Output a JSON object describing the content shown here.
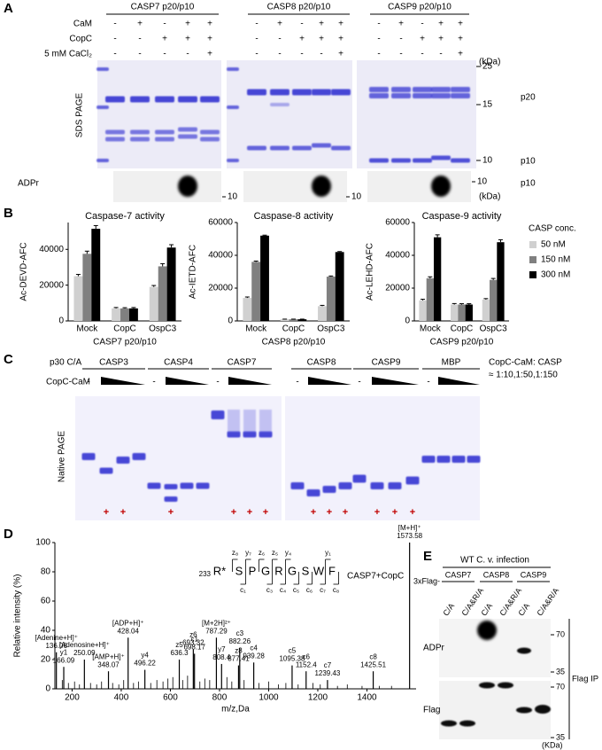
{
  "panel_a": {
    "label": "A",
    "headers": [
      "CASP7 p20/p10",
      "CASP8 p20/p10",
      "CASP9 p20/p10"
    ],
    "rows": [
      {
        "name": "CaM",
        "signs": [
          [
            "-",
            "+",
            "-",
            "+",
            "+"
          ],
          [
            "-",
            "+",
            "-",
            "+",
            "+"
          ],
          [
            "-",
            "+",
            "-",
            "+",
            "+"
          ]
        ]
      },
      {
        "name": "CopC",
        "signs": [
          [
            "-",
            "-",
            "+",
            "+",
            "+"
          ],
          [
            "-",
            "-",
            "+",
            "+",
            "+"
          ],
          [
            "-",
            "-",
            "+",
            "+",
            "+"
          ]
        ]
      },
      {
        "name": "5 mM CaCl₂",
        "signs": [
          [
            "-",
            "-",
            "-",
            "-",
            "+"
          ],
          [
            "-",
            "-",
            "-",
            "-",
            "+"
          ],
          [
            "-",
            "-",
            "-",
            "-",
            "+"
          ]
        ]
      }
    ],
    "kda": "(kDa)",
    "markers": [
      "25",
      "15",
      "10"
    ],
    "bands": [
      "p20",
      "p10"
    ],
    "gel_label": "SDS PAGE",
    "blot_label": "ADPr",
    "blot_markers": [
      "10",
      "10",
      "10"
    ],
    "blot_band": "p10",
    "blot_kda": "(kDa)"
  },
  "panel_b": {
    "label": "B",
    "legend": {
      "title": "CASP conc.",
      "entries": [
        {
          "name": "50 nM",
          "color": "#d0d0d0"
        },
        {
          "name": "150 nM",
          "color": "#808080"
        },
        {
          "name": "300 nM",
          "color": "#000000"
        }
      ]
    },
    "charts": [
      {
        "type": "bar",
        "title": "Caspase-7 activity",
        "ylabel": "Ac-DEVD-AFC",
        "categories": [
          "Mock",
          "CopC",
          "OspC3"
        ],
        "group_label": "CASP7 p20/p10",
        "ylim": [
          0,
          55000
        ],
        "yticks": [
          0,
          20000,
          40000
        ],
        "series": [
          {
            "values": [
              25000,
              7000,
              19000
            ],
            "errors": [
              1000,
              500,
              800
            ]
          },
          {
            "values": [
              37500,
              7000,
              30500
            ],
            "errors": [
              1500,
              400,
              1500
            ]
          },
          {
            "values": [
              51500,
              7000,
              41000
            ],
            "errors": [
              1800,
              500,
              1600
            ]
          }
        ]
      },
      {
        "type": "bar",
        "title": "Caspase-8 activity",
        "ylabel": "Ac-IETD-AFC",
        "categories": [
          "Mock",
          "CopC",
          "OspC3"
        ],
        "group_label": "CASP8 p20/p10",
        "ylim": [
          0,
          60000
        ],
        "yticks": [
          0,
          20000,
          40000,
          60000
        ],
        "series": [
          {
            "values": [
              14000,
              1000,
              9000
            ],
            "errors": [
              600,
              100,
              500
            ]
          },
          {
            "values": [
              36000,
              1000,
              27000
            ],
            "errors": [
              500,
              100,
              400
            ]
          },
          {
            "values": [
              52000,
              1000,
              42000
            ],
            "errors": [
              300,
              100,
              300
            ]
          }
        ]
      },
      {
        "type": "bar",
        "title": "Caspase-9 activity",
        "ylabel": "Ac-LEHD-AFC",
        "categories": [
          "Mock",
          "CopC",
          "OspC3"
        ],
        "group_label": "CASP9 p20/p10",
        "ylim": [
          0,
          60000
        ],
        "yticks": [
          0,
          20000,
          40000,
          60000
        ],
        "series": [
          {
            "values": [
              12500,
              10000,
              13000
            ],
            "errors": [
              700,
              600,
              600
            ]
          },
          {
            "values": [
              26000,
              10000,
              25000
            ],
            "errors": [
              900,
              500,
              900
            ]
          },
          {
            "values": [
              51000,
              10000,
              48000
            ],
            "errors": [
              1500,
              500,
              1500
            ]
          }
        ]
      }
    ]
  },
  "panel_c": {
    "label": "C",
    "row1_label": "p30 C/A",
    "row2_label": "CopC-CaM",
    "groups": [
      {
        "name": "CASP3",
        "minus": "-",
        "results": [
          null,
          "+",
          "+",
          null
        ]
      },
      {
        "name": "CASP4",
        "minus": "-",
        "results": [
          null,
          "+",
          null,
          null
        ]
      },
      {
        "name": "CASP7",
        "minus": "-",
        "results": [
          null,
          "+",
          "+",
          "+"
        ]
      },
      {
        "name": "CASP8",
        "minus": "-",
        "results": [
          null,
          "+",
          "+",
          "+"
        ]
      },
      {
        "name": "CASP9",
        "minus": "-",
        "results": [
          null,
          "+",
          "+",
          "+"
        ]
      },
      {
        "name": "MBP",
        "minus": "-",
        "results": [
          null,
          null,
          null,
          null
        ]
      }
    ],
    "ratio_label": "CopC-CaM: CASP",
    "ratio_values": "≈ 1:10,1:50,1:150",
    "gel_label": "Native PAGE"
  },
  "panel_d": {
    "label": "D",
    "chart": {
      "type": "stem",
      "xlabel": "m/z,Da",
      "ylabel": "Relative intensity (%)",
      "xlim": [
        130,
        1600
      ],
      "ylim": [
        0,
        100
      ],
      "xticks": [
        200,
        400,
        600,
        800,
        1000,
        1200,
        1400
      ],
      "yticks": [
        0,
        20,
        40,
        60,
        80,
        100
      ],
      "peaks": {
        "x": [
          136.06,
          166.09,
          250.09,
          348.07,
          428.04,
          496.22,
          636.3,
          693.32,
          698.17,
          787.29,
          808.4,
          877.41,
          882.26,
          939.28,
          1095.38,
          1152.4,
          1239.43,
          1425.51,
          1573.58
        ],
        "values": [
          25,
          15,
          20,
          12,
          35,
          13,
          20,
          27,
          24,
          35,
          17,
          16,
          28,
          18,
          16,
          12,
          6,
          12,
          100
        ],
        "names": [
          "[Adenine+H]⁺",
          "y1",
          "[Adenosine+H]⁺",
          "[AMP+H]⁺",
          "[ADP+H]⁺",
          "y4",
          "z5",
          "z6",
          "c1",
          "[M+2H]²⁺",
          "y7",
          "z8",
          "c3",
          "c4",
          "c5",
          "c6",
          "c7",
          "c8",
          "[M+H]⁺"
        ]
      },
      "noise": {
        "x": [
          160,
          185,
          210,
          230,
          275,
          300,
          320,
          365,
          390,
          410,
          450,
          470,
          520,
          545,
          570,
          590,
          610,
          650,
          670,
          720,
          740,
          760,
          830,
          850,
          900,
          960,
          1000,
          1040,
          1070,
          1120,
          1180,
          1210,
          1280,
          1320,
          1380,
          1450,
          1500
        ],
        "values": [
          6,
          4,
          5,
          3,
          4,
          3,
          5,
          4,
          3,
          6,
          4,
          5,
          4,
          6,
          5,
          7,
          8,
          6,
          9,
          5,
          7,
          6,
          8,
          5,
          6,
          4,
          5,
          3,
          4,
          3,
          4,
          3,
          2,
          3,
          2,
          2,
          2
        ]
      },
      "sample": "CASP7+CopC",
      "sequence": {
        "start": "233",
        "residues": [
          "R*",
          "S",
          "P",
          "G",
          "R",
          "G",
          "S",
          "W",
          "F"
        ],
        "top_ions": [
          null,
          "z₈",
          "y₇",
          "z₆",
          "z₅",
          "y₄",
          null,
          null,
          "y₁"
        ],
        "bottom_ions": [
          null,
          "c₁",
          null,
          "c₃",
          "c₄",
          "c₅",
          "c₆",
          "c₇",
          "c₈"
        ]
      }
    }
  },
  "panel_e": {
    "label": "E",
    "title": "WT C. v. infection",
    "prefix": "3xFlag-",
    "groups": [
      "CASP7",
      "CASP8",
      "CASP9"
    ],
    "lanes": [
      "C/A",
      "C/A&R/A",
      "C/A",
      "C/A&R/A",
      "C/A",
      "C/A&R/A"
    ],
    "blots": [
      "ADPr",
      "Flag"
    ],
    "markers": [
      [
        "70",
        "35"
      ],
      [
        "70",
        "35"
      ]
    ],
    "ip_label": "Flag IP",
    "unit": "(KDa)"
  }
}
